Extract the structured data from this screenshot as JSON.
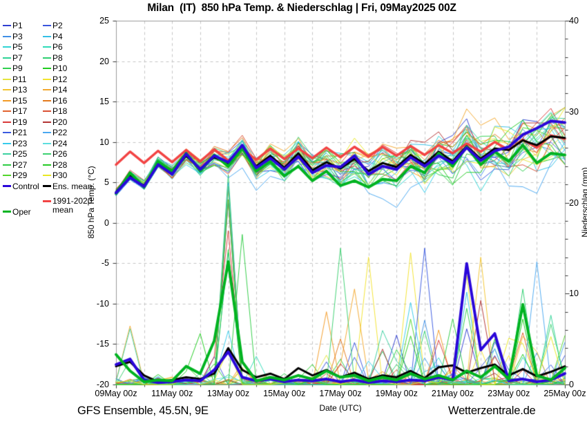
{
  "title": "Milan  (IT)  850 hPa Temp. & Niederschlag | Fri, 09May2025 00Z",
  "footer": {
    "left": "GFS Ensemble, 45.5N, 9E",
    "right": "Wetterzentrale.de"
  },
  "axes": {
    "x": {
      "label": "Date (UTC)",
      "tick_labels": [
        "09May 00z",
        "11May 00z",
        "13May 00z",
        "15May 00z",
        "17May 00z",
        "19May 00z",
        "21May 00z",
        "23May 00z",
        "25May 00z"
      ],
      "days_total": 16,
      "gridline_every_days": 1,
      "labeled_tick_every_days": 2
    },
    "temp": {
      "label": "850 hPa Temp. (°C)",
      "min": -20,
      "max": 25,
      "major_step": 5,
      "ticks": [
        25,
        20,
        15,
        10,
        5,
        0,
        -5,
        -10,
        -15,
        -20
      ]
    },
    "precip": {
      "label": "Niederschlag (mm)",
      "min": 0,
      "max": 40,
      "major_step": 10,
      "minor_step": 2,
      "ticks": [
        40,
        30,
        20,
        10,
        0
      ]
    }
  },
  "legend": {
    "entries": [
      {
        "label": "P1",
        "color": "#2e3ed1",
        "col": 0,
        "row": 0
      },
      {
        "label": "P2",
        "color": "#3a55dd",
        "col": 1,
        "row": 0
      },
      {
        "label": "P3",
        "color": "#3f8fe6",
        "col": 0,
        "row": 1
      },
      {
        "label": "P4",
        "color": "#32bfe6",
        "col": 1,
        "row": 1
      },
      {
        "label": "P5",
        "color": "#2fd3d3",
        "col": 0,
        "row": 2
      },
      {
        "label": "P6",
        "color": "#2edbb8",
        "col": 1,
        "row": 2
      },
      {
        "label": "P7",
        "color": "#2ed396",
        "col": 0,
        "row": 3
      },
      {
        "label": "P8",
        "color": "#2ecf70",
        "col": 1,
        "row": 3
      },
      {
        "label": "P9",
        "color": "#2ecf4d",
        "col": 0,
        "row": 4
      },
      {
        "label": "P10",
        "color": "#1ecb1e",
        "col": 1,
        "row": 4
      },
      {
        "label": "P11",
        "color": "#e4e43c",
        "col": 0,
        "row": 5
      },
      {
        "label": "P12",
        "color": "#f2e32e",
        "col": 1,
        "row": 5
      },
      {
        "label": "P13",
        "color": "#f2c42e",
        "col": 0,
        "row": 6
      },
      {
        "label": "P14",
        "color": "#f2a82e",
        "col": 1,
        "row": 6
      },
      {
        "label": "P15",
        "color": "#f29a24",
        "col": 0,
        "row": 7
      },
      {
        "label": "P16",
        "color": "#e3791c",
        "col": 1,
        "row": 7
      },
      {
        "label": "P17",
        "color": "#e2622e",
        "col": 0,
        "row": 8
      },
      {
        "label": "P18",
        "color": "#d94f33",
        "col": 1,
        "row": 8
      },
      {
        "label": "P19",
        "color": "#d93838",
        "col": 0,
        "row": 9
      },
      {
        "label": "P20",
        "color": "#b23333",
        "col": 1,
        "row": 9
      },
      {
        "label": "P21",
        "color": "#3a5ae0",
        "col": 0,
        "row": 10
      },
      {
        "label": "P22",
        "color": "#4aa8f0",
        "col": 1,
        "row": 10
      },
      {
        "label": "P23",
        "color": "#35cbeb",
        "col": 0,
        "row": 11
      },
      {
        "label": "P24",
        "color": "#5cdede",
        "col": 1,
        "row": 11
      },
      {
        "label": "P25",
        "color": "#3bd0a0",
        "col": 0,
        "row": 12
      },
      {
        "label": "P26",
        "color": "#3bd070",
        "col": 1,
        "row": 12
      },
      {
        "label": "P27",
        "color": "#2ecc44",
        "col": 0,
        "row": 13
      },
      {
        "label": "P28",
        "color": "#24ca24",
        "col": 1,
        "row": 13
      },
      {
        "label": "P29",
        "color": "#52d52a",
        "col": 0,
        "row": 14
      },
      {
        "label": "P30",
        "color": "#e8e822",
        "col": 1,
        "row": 14
      },
      {
        "label": "Control",
        "color": "#2a07d9",
        "col": 0,
        "row": 15,
        "thick": true
      },
      {
        "label": "Ens. mean",
        "color": "#000000",
        "col": 1,
        "row": 15,
        "thick": true
      },
      {
        "label": "1991-2020 mean",
        "color": "#f24444",
        "col": 1,
        "row": 16.4,
        "thick": true,
        "wrap": true
      },
      {
        "label": "Oper",
        "color": "#00b321",
        "col": 0,
        "row": 17.4,
        "thick": true
      }
    ]
  },
  "chart_data": {
    "type": "line",
    "title": "Milan (IT) 850 hPa Temp. & Niederschlag | Fri, 09May2025 00Z",
    "x_start": "09May2025 00z",
    "x_end": "25May2025 00z",
    "time_step_hours": 12,
    "n_points": 33,
    "ylim_temp": [
      -20,
      25
    ],
    "ylim_precip": [
      0,
      40
    ],
    "grid": "dashed, vertical daily, horizontal every 5 C",
    "legend_position": "left",
    "main_series": [
      {
        "name": "1991-2020 mean",
        "axis": "temp",
        "color": "#f24444",
        "width": 3.5,
        "values": [
          7.2,
          8.8,
          7.4,
          8.9,
          7.5,
          9.0,
          7.6,
          9.1,
          7.7,
          9.1,
          7.8,
          9.2,
          7.9,
          9.2,
          8.0,
          9.3,
          8.1,
          9.4,
          8.2,
          9.4,
          8.3,
          9.5,
          8.4,
          9.6,
          8.6,
          9.8,
          8.8,
          10.0,
          9.0,
          10.3,
          9.3,
          10.8,
          10.4
        ]
      },
      {
        "name": "Ens. mean temp",
        "axis": "temp",
        "color": "#000000",
        "width": 3,
        "values": [
          3.8,
          5.8,
          4.6,
          7.4,
          6.2,
          8.3,
          6.7,
          8.1,
          7.3,
          9.4,
          7.0,
          8.3,
          6.8,
          8.6,
          6.5,
          7.5,
          6.7,
          7.9,
          6.4,
          7.4,
          6.9,
          8.4,
          7.3,
          8.8,
          7.6,
          9.5,
          7.9,
          9.2,
          9.0,
          10.2,
          9.6,
          10.7,
          10.5
        ]
      },
      {
        "name": "Oper temp",
        "axis": "temp",
        "color": "#00b321",
        "width": 4,
        "values": [
          3.6,
          6.2,
          4.4,
          7.6,
          6.4,
          8.6,
          6.4,
          8.4,
          7.0,
          9.2,
          6.4,
          7.6,
          5.8,
          7.0,
          5.2,
          6.4,
          4.6,
          5.2,
          4.4,
          5.4,
          5.2,
          7.0,
          6.2,
          8.6,
          7.0,
          9.4,
          7.2,
          8.8,
          7.6,
          9.6,
          7.4,
          8.6,
          8.4
        ]
      },
      {
        "name": "Control temp",
        "axis": "temp",
        "color": "#2a07d9",
        "width": 4,
        "values": [
          3.7,
          5.6,
          4.5,
          7.2,
          6.0,
          8.5,
          6.6,
          8.3,
          7.5,
          9.6,
          6.8,
          8.0,
          6.6,
          8.2,
          6.2,
          7.1,
          6.9,
          8.3,
          6.0,
          7.0,
          6.6,
          8.1,
          7.0,
          8.3,
          7.4,
          9.3,
          7.7,
          8.9,
          9.4,
          10.9,
          11.7,
          12.6,
          12.4
        ]
      },
      {
        "name": "Ens. mean precip",
        "axis": "precip",
        "color": "#000000",
        "width": 3,
        "values": [
          2.0,
          2.5,
          1.0,
          0.3,
          0.5,
          0.8,
          0.6,
          1.2,
          4.0,
          1.6,
          0.8,
          1.2,
          0.6,
          1.8,
          1.0,
          1.6,
          0.8,
          1.3,
          0.6,
          1.0,
          0.8,
          1.5,
          0.7,
          1.9,
          2.1,
          1.3,
          1.8,
          2.2,
          1.0,
          1.7,
          0.9,
          1.4,
          2.0
        ]
      },
      {
        "name": "Control precip",
        "axis": "precip",
        "color": "#2a07d9",
        "width": 4,
        "values": [
          2.2,
          2.8,
          0.5,
          0.2,
          0.3,
          0.5,
          0.4,
          1.6,
          3.6,
          0.8,
          0.4,
          0.6,
          0.3,
          0.5,
          0.4,
          0.6,
          0.3,
          0.5,
          0.2,
          0.4,
          0.3,
          0.5,
          0.4,
          0.8,
          0.5,
          13.3,
          3.8,
          5.6,
          0.4,
          0.6,
          0.3,
          0.5,
          1.2
        ]
      },
      {
        "name": "Oper precip",
        "axis": "precip",
        "color": "#00b321",
        "width": 4,
        "values": [
          3.3,
          1.5,
          0.3,
          0.5,
          0.4,
          2.0,
          1.2,
          4.8,
          13.5,
          2.5,
          0.4,
          0.8,
          0.5,
          1.0,
          0.6,
          1.5,
          0.8,
          1.0,
          0.4,
          0.8,
          0.5,
          1.2,
          0.6,
          1.0,
          0.5,
          1.5,
          0.8,
          2.0,
          0.6,
          8.8,
          1.0,
          0.5,
          1.8
        ]
      }
    ],
    "members": {
      "note": "30 ensemble member curves; exact per-member values are not readable from the source spaghetti plot and are approximated around the ensemble mean with a growing spread envelope.",
      "base_series": "Ens. mean temp",
      "temp_spread_envelope": [
        0.4,
        0.5,
        0.6,
        0.7,
        0.8,
        0.9,
        1.0,
        1.1,
        1.2,
        1.3,
        1.4,
        1.5,
        1.6,
        1.7,
        1.8,
        1.9,
        2.0,
        2.1,
        2.2,
        2.3,
        2.4,
        2.5,
        2.6,
        2.7,
        2.8,
        2.9,
        3.0,
        3.1,
        3.2,
        3.3,
        3.4,
        3.5,
        3.6
      ],
      "temp_bias": {
        "P14": 1.6,
        "P16": 1.0,
        "P3": -0.8,
        "P21": -1.0,
        "P22": -1.5,
        "P30": 0.8
      },
      "precip_spike_scale": [
        2.5,
        2.5,
        1.2,
        0.6,
        0.8,
        1.2,
        2.0,
        5.0,
        9.0,
        5.0,
        1.5,
        1.2,
        1.0,
        1.5,
        1.2,
        2.0,
        2.0,
        2.5,
        2.0,
        3.0,
        2.5,
        3.5,
        3.0,
        3.5,
        3.0,
        4.0,
        3.5,
        4.0,
        3.0,
        4.0,
        3.0,
        3.5,
        2.5
      ],
      "explicit_precip_spikes": [
        {
          "member": "P16",
          "idx": 8,
          "mm": 20.0
        },
        {
          "member": "P27",
          "idx": 9,
          "mm": 16.5
        },
        {
          "member": "P4",
          "idx": 8,
          "mm": 14.5
        },
        {
          "member": "P15",
          "idx": 15,
          "mm": 8.0
        },
        {
          "member": "P26",
          "idx": 16,
          "mm": 15.0
        },
        {
          "member": "P14",
          "idx": 17,
          "mm": 10.5
        },
        {
          "member": "P12",
          "idx": 18,
          "mm": 14.0
        },
        {
          "member": "P12",
          "idx": 21,
          "mm": 14.5
        },
        {
          "member": "P21",
          "idx": 22,
          "mm": 15.0
        },
        {
          "member": "P30",
          "idx": 25,
          "mm": 12.0
        },
        {
          "member": "P13",
          "idx": 26,
          "mm": 14.0
        },
        {
          "member": "P8",
          "idx": 29,
          "mm": 10.5
        },
        {
          "member": "P22",
          "idx": 30,
          "mm": 13.5
        }
      ]
    }
  }
}
